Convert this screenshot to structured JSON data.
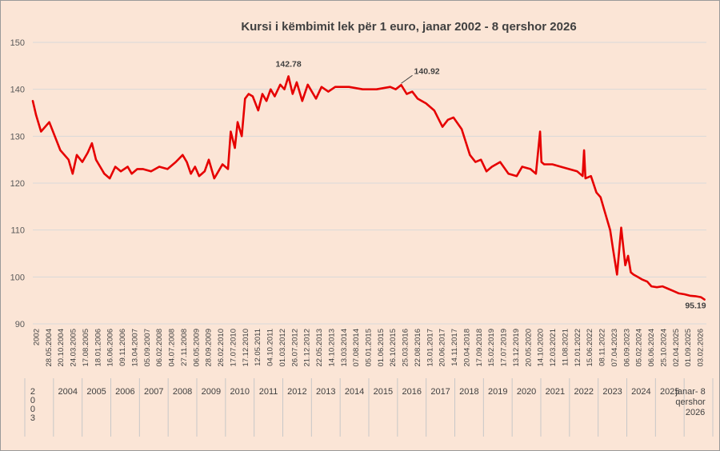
{
  "chart_data": {
    "type": "line",
    "title": "Kursi i këmbimit lek për 1 euro, janar 2002 - 8 qershor 2026",
    "xlabel": "",
    "ylabel": "",
    "ylim": [
      90,
      150
    ],
    "yticks": [
      "90",
      "100",
      "110",
      "120",
      "130",
      "140",
      "150"
    ],
    "grid": true,
    "colors": {
      "line": "#e60000",
      "background": "#fbe5d6",
      "grid": "#d9d9d9"
    },
    "date_ticks": [
      "2002",
      "28.05.2004",
      "20.10.2004",
      "24.03.2005",
      "17.08.2005",
      "18.01.2006",
      "16.06.2006",
      "09.11.2006",
      "13.04.2007",
      "05.09.2007",
      "06.02.2008",
      "04.07.2008",
      "27.11.2008",
      "06.05.2009",
      "28.09.2009",
      "26.02.2010",
      "17.07.2010",
      "17.12.2010",
      "12.05.2011",
      "04.10.2011",
      "01.03.2012",
      "26.07.2012",
      "21.12.2012",
      "22.05.2013",
      "14.10.2013",
      "13.03.2014",
      "07.08.2014",
      "05.01.2015",
      "01.06.2015",
      "26.10.2015",
      "25.03.2016",
      "22.08.2016",
      "13.01.2017",
      "20.06.2017",
      "14.11.2017",
      "20.04.2018",
      "17.09.2018",
      "15.02.2019",
      "17.07.2019",
      "13.12.2019",
      "20.05.2020",
      "14.10.2020",
      "12.03.2021",
      "11.08.2021",
      "12.01.2022",
      "15.06.2022",
      "08.11.2022",
      "07.04.2023",
      "06.09.2023",
      "05.02.2024",
      "06.06.2024",
      "25.10.2024",
      "02.04.2025",
      "01.09.2025",
      "03.02.2026"
    ],
    "year_labels": [
      "2 0 0 3",
      "2004",
      "2005",
      "2006",
      "2007",
      "2008",
      "2009",
      "2010",
      "2011",
      "2012",
      "2013",
      "2014",
      "2015",
      "2016",
      "2017",
      "2018",
      "2019",
      "2020",
      "2021",
      "2022",
      "2023",
      "2024",
      "2025",
      "janar- 8 qershor 2026"
    ],
    "annotations": [
      {
        "label": "142.78",
        "x": 2011.3,
        "y": 142.78
      },
      {
        "label": "140.92",
        "x": 2015.4,
        "y": 140.92
      },
      {
        "label": "95.19",
        "x": 2026.43,
        "y": 95.19
      }
    ],
    "series": [
      {
        "name": "",
        "x": [
          2002.0,
          2002.12,
          2002.3,
          2002.6,
          2003.0,
          2003.3,
          2003.45,
          2003.6,
          2003.8,
          2004.0,
          2004.15,
          2004.3,
          2004.45,
          2004.6,
          2004.8,
          2005.0,
          2005.2,
          2005.45,
          2005.6,
          2005.8,
          2006.0,
          2006.3,
          2006.6,
          2006.9,
          2007.2,
          2007.45,
          2007.6,
          2007.75,
          2007.9,
          2008.05,
          2008.25,
          2008.4,
          2008.6,
          2008.75,
          2008.9,
          2009.1,
          2009.2,
          2009.35,
          2009.45,
          2009.6,
          2009.72,
          2009.85,
          2010.0,
          2010.2,
          2010.35,
          2010.5,
          2010.65,
          2010.8,
          2011.0,
          2011.15,
          2011.3,
          2011.45,
          2011.6,
          2011.8,
          2012.0,
          2012.3,
          2012.5,
          2012.75,
          2013.0,
          2013.5,
          2014.0,
          2014.5,
          2015.0,
          2015.2,
          2015.4,
          2015.6,
          2015.8,
          2016.0,
          2016.3,
          2016.6,
          2016.9,
          2017.1,
          2017.3,
          2017.6,
          2017.9,
          2018.1,
          2018.3,
          2018.5,
          2018.7,
          2019.0,
          2019.3,
          2019.6,
          2019.8,
          2020.1,
          2020.3,
          2020.45,
          2020.5,
          2020.6,
          2020.9,
          2021.2,
          2021.5,
          2021.8,
          2022.0,
          2022.05,
          2022.1,
          2022.3,
          2022.5,
          2022.65,
          2022.8,
          2023.0,
          2023.1,
          2023.25,
          2023.4,
          2023.55,
          2023.65,
          2023.75,
          2023.85,
          2024.0,
          2024.15,
          2024.35,
          2024.5,
          2024.7,
          2024.9,
          2025.1,
          2025.3,
          2025.5,
          2025.7,
          2025.9,
          2026.1,
          2026.3,
          2026.43
        ],
        "values": [
          137.5,
          134.5,
          131.0,
          133.0,
          127.0,
          125.0,
          122.0,
          126.0,
          124.5,
          126.5,
          128.5,
          125.0,
          123.5,
          122.0,
          121.0,
          123.5,
          122.5,
          123.5,
          122.0,
          123.0,
          123.0,
          122.5,
          123.5,
          123.0,
          124.5,
          126.0,
          124.5,
          122.0,
          123.5,
          121.5,
          122.5,
          125.0,
          121.0,
          122.5,
          124.0,
          123.0,
          131.0,
          127.5,
          133.0,
          130.0,
          138.0,
          139.0,
          138.5,
          135.5,
          139.0,
          137.5,
          140.0,
          138.5,
          141.0,
          140.0,
          142.78,
          139.0,
          141.5,
          137.5,
          141.0,
          138.0,
          140.5,
          139.5,
          140.5,
          140.5,
          140.0,
          140.0,
          140.5,
          140.0,
          140.92,
          139.0,
          139.5,
          138.0,
          137.0,
          135.5,
          132.0,
          133.5,
          134.0,
          131.5,
          126.0,
          124.5,
          125.0,
          122.5,
          123.5,
          124.5,
          122.0,
          121.5,
          123.5,
          123.0,
          122.0,
          131.0,
          124.5,
          124.0,
          124.0,
          123.5,
          123.0,
          122.5,
          121.5,
          127.0,
          121.0,
          121.5,
          118.0,
          117.0,
          114.0,
          110.0,
          106.0,
          100.5,
          110.5,
          102.5,
          104.5,
          101.0,
          100.5,
          100.0,
          99.5,
          99.0,
          98.0,
          97.8,
          98.0,
          97.5,
          97.0,
          96.5,
          96.3,
          96.0,
          95.9,
          95.7,
          95.19
        ]
      }
    ]
  }
}
